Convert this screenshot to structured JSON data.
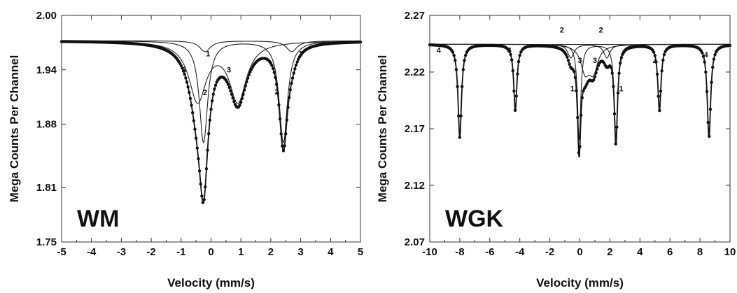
{
  "chart_data": [
    {
      "type": "scatter",
      "panel_label": "WM",
      "xlabel": "Velocity (mm/s)",
      "ylabel": "Mega Counts Per Channel",
      "xlim": [
        -5,
        5
      ],
      "ylim": [
        1.75,
        2.0
      ],
      "x_ticks": [
        "-5",
        "-4",
        "-3",
        "-2",
        "-1",
        "0",
        "1",
        "2",
        "3",
        "4",
        "5"
      ],
      "y_ticks": [
        "1.75",
        "1.81",
        "1.88",
        "1.94",
        "2.00"
      ],
      "baseline": 1.972,
      "components": [
        {
          "name": "1",
          "lines": [
            {
              "pos": -0.2,
              "depth": 0.012,
              "hwhm": 0.22
            },
            {
              "pos": 2.7,
              "depth": 0.012,
              "hwhm": 0.22
            }
          ]
        },
        {
          "name": "2",
          "lines": [
            {
              "pos": -0.25,
              "depth": 0.112,
              "hwhm": 0.17
            },
            {
              "pos": 2.42,
              "depth": 0.112,
              "hwhm": 0.17
            }
          ]
        },
        {
          "name": "3",
          "lines": [
            {
              "pos": -0.45,
              "depth": 0.065,
              "hwhm": 0.35
            },
            {
              "pos": 0.9,
              "depth": 0.065,
              "hwhm": 0.35
            }
          ]
        }
      ],
      "annotations": [
        {
          "text": "1",
          "x": -0.1,
          "y": 1.955
        },
        {
          "text": "1",
          "x": 3.0,
          "y": 1.955
        },
        {
          "text": "3",
          "x": -0.9,
          "y": 1.937
        },
        {
          "text": "3",
          "x": 0.6,
          "y": 1.937
        },
        {
          "text": "2",
          "x": -0.2,
          "y": 1.912
        },
        {
          "text": "2",
          "x": 2.2,
          "y": 1.913
        }
      ]
    },
    {
      "type": "scatter",
      "panel_label": "WGK",
      "xlabel": "Velocity (mm/s)",
      "ylabel": "Mega Counts Per Channel",
      "xlim": [
        -10,
        10
      ],
      "ylim": [
        2.07,
        2.27
      ],
      "x_ticks": [
        "-10",
        "-8",
        "-6",
        "-4",
        "-2",
        "0",
        "2",
        "4",
        "6",
        "8",
        "10"
      ],
      "y_ticks": [
        "2.07",
        "2.12",
        "2.17",
        "2.22",
        "2.27"
      ],
      "baseline": 2.2445,
      "components": [
        {
          "name": "1",
          "lines": [
            {
              "pos": -0.05,
              "depth": 0.085,
              "hwhm": 0.13
            },
            {
              "pos": 2.4,
              "depth": 0.085,
              "hwhm": 0.13
            }
          ]
        },
        {
          "name": "2",
          "lines": [
            {
              "pos": -0.6,
              "depth": 0.012,
              "hwhm": 0.25
            },
            {
              "pos": 1.8,
              "depth": 0.012,
              "hwhm": 0.25
            }
          ]
        },
        {
          "name": "3",
          "lines": [
            {
              "pos": 0.35,
              "depth": 0.022,
              "hwhm": 0.35
            },
            {
              "pos": 0.9,
              "depth": 0.022,
              "hwhm": 0.35
            }
          ]
        },
        {
          "name": "4",
          "lines": [
            {
              "pos": -8.0,
              "depth": 0.082,
              "hwhm": 0.14
            },
            {
              "pos": -4.3,
              "depth": 0.058,
              "hwhm": 0.13
            },
            {
              "pos": 5.3,
              "depth": 0.058,
              "hwhm": 0.13
            },
            {
              "pos": 8.6,
              "depth": 0.082,
              "hwhm": 0.14
            }
          ]
        }
      ],
      "annotations": [
        {
          "text": "4",
          "x": -9.4,
          "y": 2.237
        },
        {
          "text": "4",
          "x": -4.7,
          "y": 2.237
        },
        {
          "text": "2",
          "x": -1.2,
          "y": 2.255
        },
        {
          "text": "2",
          "x": 1.4,
          "y": 2.255
        },
        {
          "text": "3",
          "x": 0.0,
          "y": 2.228
        },
        {
          "text": "3",
          "x": 1.0,
          "y": 2.228
        },
        {
          "text": "1",
          "x": -0.5,
          "y": 2.203
        },
        {
          "text": "1",
          "x": 2.75,
          "y": 2.203
        },
        {
          "text": "4",
          "x": 5.0,
          "y": 2.227
        },
        {
          "text": "4",
          "x": 8.4,
          "y": 2.233
        }
      ]
    }
  ]
}
